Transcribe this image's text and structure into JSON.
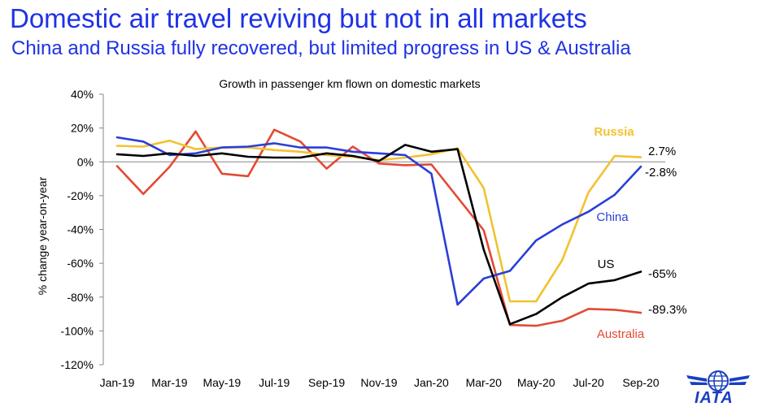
{
  "header": {
    "title": "Domestic air travel reviving but not in all markets",
    "subtitle": "China and Russia fully recovered, but limited progress in US & Australia"
  },
  "logo": {
    "text": "IATA",
    "icon": "globe-wings-icon",
    "color": "#1a3fbf"
  },
  "chart_data": {
    "type": "line",
    "title": "Growth in passenger km flown on domestic markets",
    "xlabel": "",
    "ylabel": "% change year-on-year",
    "ylim": [
      -120,
      40
    ],
    "yticks": [
      40,
      20,
      0,
      -20,
      -40,
      -60,
      -80,
      -100,
      -120
    ],
    "ytick_labels": [
      "40%",
      "20%",
      "0%",
      "-20%",
      "-40%",
      "-60%",
      "-80%",
      "-100%",
      "-120%"
    ],
    "x": [
      "Jan-19",
      "Feb-19",
      "Mar-19",
      "Apr-19",
      "May-19",
      "Jun-19",
      "Jul-19",
      "Aug-19",
      "Sep-19",
      "Oct-19",
      "Nov-19",
      "Dec-19",
      "Jan-20",
      "Feb-20",
      "Mar-20",
      "Apr-20",
      "May-20",
      "Jun-20",
      "Jul-20",
      "Aug-20",
      "Sep-20"
    ],
    "xtick_labels": [
      "Jan-19",
      "Mar-19",
      "May-19",
      "Jul-19",
      "Sep-19",
      "Nov-19",
      "Jan-20",
      "Mar-20",
      "May-20",
      "Jul-20",
      "Sep-20"
    ],
    "series": [
      {
        "name": "China",
        "color": "#2a3fd6",
        "label": "China",
        "end_label": "-2.8%",
        "values": [
          14.5,
          12,
          4,
          5,
          8.5,
          9,
          11,
          8.5,
          8.5,
          6,
          5,
          4,
          -7,
          -84.5,
          -69,
          -64.5,
          -46.5,
          -37,
          -29.5,
          -19.5,
          -2.8
        ]
      },
      {
        "name": "Russia",
        "color": "#f2c230",
        "label": "Russia",
        "end_label": "2.7%",
        "values": [
          9.5,
          9,
          12.5,
          7.5,
          8.5,
          8.5,
          7,
          6,
          4,
          3,
          1,
          2.5,
          4.5,
          8,
          -15.5,
          -82.5,
          -82.5,
          -58,
          -18,
          3.5,
          2.7
        ]
      },
      {
        "name": "US",
        "color": "#000000",
        "label": "US",
        "end_label": "-65%",
        "values": [
          4.5,
          3.5,
          5,
          3.5,
          5,
          3,
          2.5,
          2.5,
          5,
          3.5,
          0.5,
          10,
          6,
          7.5,
          -52,
          -96,
          -90,
          -80,
          -72,
          -70,
          -65
        ]
      },
      {
        "name": "Australia",
        "color": "#e24b33",
        "label": "Australia",
        "end_label": "-89.3%",
        "values": [
          -2.5,
          -19,
          -3,
          18,
          -7,
          -8.5,
          19,
          12,
          -4,
          9,
          -1,
          -2,
          -1.5,
          -21,
          -40.5,
          -96.5,
          -97,
          -94,
          -87,
          -87.5,
          -89.3
        ]
      }
    ]
  }
}
